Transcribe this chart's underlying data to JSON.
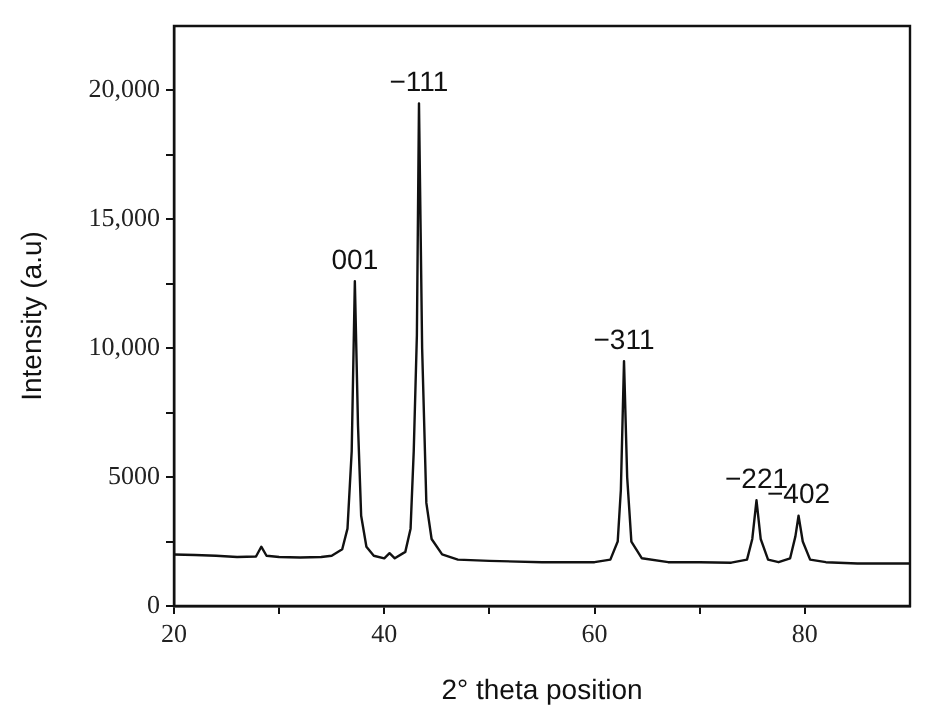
{
  "chart_data": {
    "type": "line",
    "xlabel": "2° theta position",
    "ylabel": "Intensity (a.u)",
    "x": [
      20,
      22,
      24,
      26,
      27.8,
      28.3,
      28.8,
      30,
      32,
      34,
      35,
      36,
      36.5,
      36.9,
      37.2,
      37.5,
      37.8,
      38.3,
      39,
      40,
      40.5,
      41,
      42,
      42.5,
      42.8,
      43.1,
      43.3,
      43.6,
      44,
      44.5,
      45.5,
      47,
      50,
      55,
      60,
      61.5,
      62.2,
      62.5,
      62.8,
      63.1,
      63.5,
      64.5,
      67,
      70,
      73,
      74.5,
      75,
      75.4,
      75.8,
      76.5,
      77.5,
      78.6,
      79.1,
      79.4,
      79.8,
      80.5,
      82,
      85,
      88,
      90
    ],
    "series": [
      {
        "color": "#111111",
        "values": [
          2000,
          1980,
          1950,
          1900,
          1920,
          2300,
          1950,
          1900,
          1880,
          1900,
          1950,
          2200,
          3000,
          6000,
          12600,
          7000,
          3500,
          2300,
          1950,
          1850,
          2050,
          1850,
          2100,
          3000,
          6000,
          10500,
          19500,
          10000,
          4000,
          2600,
          2000,
          1800,
          1750,
          1700,
          1700,
          1800,
          2500,
          4500,
          9500,
          5000,
          2500,
          1850,
          1700,
          1700,
          1680,
          1800,
          2600,
          4100,
          2600,
          1800,
          1700,
          1850,
          2700,
          3500,
          2500,
          1800,
          1700,
          1650,
          1650,
          1650
        ]
      }
    ],
    "xlim": [
      20,
      90
    ],
    "xticks": [
      20,
      {
        "value": 30,
        "label": null
      },
      40,
      {
        "value": 50,
        "label": null
      },
      60,
      {
        "value": 70,
        "label": null
      },
      80
    ],
    "ylim": [
      0,
      22500
    ],
    "yticks": [
      0,
      {
        "value": 2500,
        "label": null
      },
      5000,
      {
        "value": 7500,
        "label": null
      },
      {
        "value": 10000,
        "label": "10,000"
      },
      {
        "value": 12500,
        "label": null
      },
      {
        "value": 15000,
        "label": "15,000"
      },
      {
        "value": 17500,
        "label": null
      },
      {
        "value": 20000,
        "label": "20,000"
      }
    ],
    "annotations": [
      {
        "text": "001",
        "x": 37.2,
        "y": 12600
      },
      {
        "text": "−111",
        "x": 43.3,
        "y": 19500
      },
      {
        "text": "−311",
        "x": 62.8,
        "y": 9500
      },
      {
        "text": "−221",
        "x": 75.4,
        "y": 4100
      },
      {
        "text": "−402",
        "x": 79.4,
        "y": 3500
      }
    ],
    "grid": false,
    "legend": false,
    "marker": "none",
    "line_style": "solid"
  }
}
